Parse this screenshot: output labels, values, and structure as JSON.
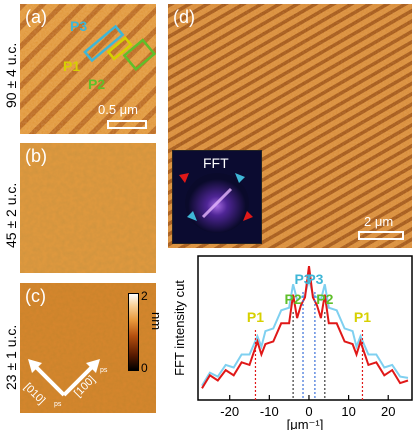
{
  "panels": {
    "a": {
      "label": "(a)",
      "thickness": "90 ± 4 u.c.",
      "scale": "0.5 μm",
      "profiles": [
        "P3",
        "P1",
        "P2"
      ]
    },
    "b": {
      "label": "(b)",
      "thickness": "45 ± 2 u.c."
    },
    "c": {
      "label": "(c)",
      "thickness": "23 ± 1 u.c.",
      "axis_x": "[100]",
      "axis_y": "[010]",
      "sub": "ps",
      "colorbar": {
        "min": "0",
        "max": "2",
        "unit": "nm"
      }
    },
    "d": {
      "label": "(d)",
      "scale": "2 μm",
      "fft_label": "FFT"
    }
  },
  "colors": {
    "p1": "#d7d000",
    "p2": "#5fbf2a",
    "p3": "#3fb6d6",
    "red_curve": "#e01818",
    "blue_curve": "#7fd0f0"
  },
  "chart_data": {
    "type": "line",
    "xlabel": "[μm⁻¹]",
    "ylabel": "FFT intensity cut",
    "xlim": [
      -28,
      26
    ],
    "xticks": [
      -20,
      -10,
      0,
      10,
      20
    ],
    "series": [],
    "x": [
      -27,
      -25,
      -23,
      -21,
      -19,
      -17,
      -15,
      -13,
      -12,
      -11,
      -9,
      -7,
      -5,
      -4,
      -3,
      -2,
      -1,
      0,
      1,
      2,
      3,
      4,
      5,
      7,
      9,
      11,
      12,
      13,
      15,
      17,
      19,
      21,
      23,
      25
    ],
    "red_values": [
      0.12,
      0.16,
      0.18,
      0.2,
      0.22,
      0.26,
      0.3,
      0.42,
      0.38,
      0.4,
      0.48,
      0.56,
      0.62,
      0.78,
      0.66,
      0.7,
      0.82,
      1.0,
      0.82,
      0.7,
      0.66,
      0.78,
      0.62,
      0.56,
      0.48,
      0.4,
      0.38,
      0.42,
      0.3,
      0.26,
      0.22,
      0.2,
      0.16,
      0.12
    ],
    "blue_values": [
      0.14,
      0.18,
      0.21,
      0.24,
      0.28,
      0.32,
      0.38,
      0.46,
      0.44,
      0.5,
      0.58,
      0.66,
      0.74,
      0.86,
      0.8,
      0.76,
      0.84,
      0.9,
      0.84,
      0.76,
      0.8,
      0.86,
      0.74,
      0.66,
      0.58,
      0.5,
      0.44,
      0.46,
      0.38,
      0.32,
      0.28,
      0.24,
      0.21,
      0.14
    ],
    "peak_markers": [
      {
        "label": "P1",
        "x": -13.5
      },
      {
        "label": "P2",
        "x": -4
      },
      {
        "label": "P3",
        "x": -1.5
      },
      {
        "label": "P3",
        "x": 1.5
      },
      {
        "label": "P2",
        "x": 4
      },
      {
        "label": "P1",
        "x": 13.5
      }
    ]
  }
}
